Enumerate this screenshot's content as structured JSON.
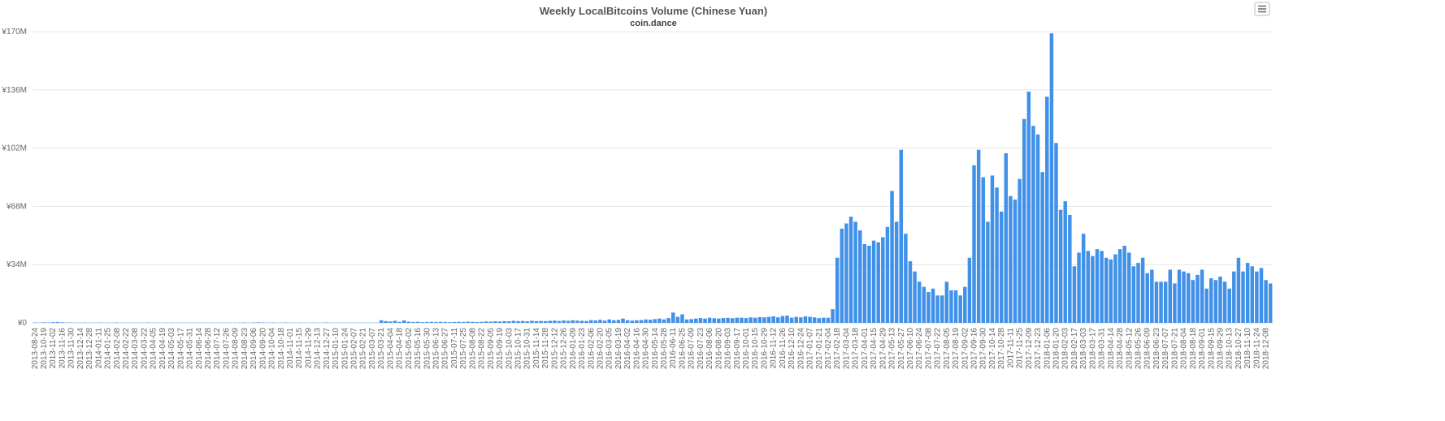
{
  "chart_data": {
    "type": "bar",
    "title": "Weekly LocalBitcoins Volume (Chinese Yuan)",
    "subtitle": "coin.dance",
    "color": "#4191e8",
    "grid": true,
    "ylim": [
      0,
      170000000
    ],
    "yticks": [
      {
        "value": 0,
        "label": "¥0"
      },
      {
        "value": 34000000,
        "label": "¥34M"
      },
      {
        "value": 68000000,
        "label": "¥68M"
      },
      {
        "value": 102000000,
        "label": "¥102M"
      },
      {
        "value": 136000000,
        "label": "¥136M"
      },
      {
        "value": 170000000,
        "label": "¥170M"
      }
    ],
    "categories": [
      "2013-08-24",
      null,
      "2013-10-19",
      null,
      "2013-11-02",
      null,
      "2013-11-16",
      null,
      "2013-11-30",
      null,
      "2013-12-14",
      null,
      "2013-12-28",
      null,
      "2014-01-11",
      null,
      "2014-01-25",
      null,
      "2014-02-08",
      null,
      "2014-02-22",
      null,
      "2014-03-08",
      null,
      "2014-03-22",
      null,
      "2014-04-05",
      null,
      "2014-04-19",
      null,
      "2014-05-03",
      null,
      "2014-05-17",
      null,
      "2014-05-31",
      null,
      "2014-06-14",
      null,
      "2014-06-28",
      null,
      "2014-07-12",
      null,
      "2014-07-26",
      null,
      "2014-08-09",
      null,
      "2014-08-23",
      null,
      "2014-09-06",
      null,
      "2014-09-20",
      null,
      "2014-10-04",
      null,
      "2014-10-18",
      null,
      "2014-11-01",
      null,
      "2014-11-15",
      null,
      "2014-11-29",
      null,
      "2014-12-13",
      null,
      "2014-12-27",
      null,
      "2015-01-10",
      null,
      "2015-01-24",
      null,
      "2015-02-07",
      null,
      "2015-02-21",
      null,
      "2015-03-07",
      null,
      "2015-03-21",
      null,
      "2015-04-04",
      null,
      "2015-04-18",
      null,
      "2015-05-02",
      null,
      "2015-05-16",
      null,
      "2015-05-30",
      null,
      "2015-06-13",
      null,
      "2015-06-27",
      null,
      "2015-07-11",
      null,
      "2015-07-25",
      null,
      "2015-08-08",
      null,
      "2015-08-22",
      null,
      "2015-09-05",
      null,
      "2015-09-19",
      null,
      "2015-10-03",
      null,
      "2015-10-17",
      null,
      "2015-10-31",
      null,
      "2015-11-14",
      null,
      "2015-11-28",
      null,
      "2015-12-12",
      null,
      "2015-12-26",
      null,
      "2016-01-09",
      null,
      "2016-01-23",
      null,
      "2016-02-06",
      null,
      "2016-02-20",
      null,
      "2016-03-05",
      null,
      "2016-03-19",
      null,
      "2016-04-02",
      null,
      "2016-04-16",
      null,
      "2016-04-30",
      null,
      "2016-05-14",
      null,
      "2016-05-28",
      null,
      "2016-06-11",
      null,
      "2016-06-25",
      null,
      "2016-07-09",
      null,
      "2016-07-23",
      null,
      "2016-08-06",
      null,
      "2016-08-20",
      null,
      "2016-09-03",
      null,
      "2016-09-17",
      null,
      "2016-10-01",
      null,
      "2016-10-15",
      null,
      "2016-10-29",
      null,
      "2016-11-12",
      null,
      "2016-11-26",
      null,
      "2016-12-10",
      null,
      "2016-12-24",
      null,
      "2017-01-07",
      null,
      "2017-01-21",
      null,
      "2017-02-04",
      null,
      "2017-02-18",
      null,
      "2017-03-04",
      null,
      "2017-03-18",
      null,
      "2017-04-01",
      null,
      "2017-04-15",
      null,
      "2017-04-29",
      null,
      "2017-05-13",
      null,
      "2017-05-27",
      null,
      "2017-06-10",
      null,
      "2017-06-24",
      null,
      "2017-07-08",
      null,
      "2017-07-22",
      null,
      "2017-08-05",
      null,
      "2017-08-19",
      null,
      "2017-09-02",
      null,
      "2017-09-16",
      null,
      "2017-09-30",
      null,
      "2017-10-14",
      null,
      "2017-10-28",
      null,
      "2017-11-11",
      null,
      "2017-11-25",
      null,
      "2017-12-09",
      null,
      "2017-12-23",
      null,
      "2018-01-06",
      null,
      "2018-01-20",
      null,
      "2018-02-03",
      null,
      "2018-02-17",
      null,
      "2018-03-03",
      null,
      "2018-03-17",
      null,
      "2018-03-31",
      null,
      "2018-04-14",
      null,
      "2018-04-28",
      null,
      "2018-05-12",
      null,
      "2018-05-26",
      null,
      "2018-06-09",
      null,
      "2018-06-23",
      null,
      "2018-07-07",
      null,
      "2018-07-21",
      null,
      "2018-08-04",
      null,
      "2018-08-18",
      null,
      "2018-09-01",
      null,
      "2018-09-15",
      null,
      "2018-09-29",
      null,
      "2018-10-13",
      null,
      "2018-10-27",
      null,
      "2018-11-10",
      null,
      "2018-11-24",
      null,
      "2018-12-08",
      null
    ],
    "values": [
      200000,
      100000,
      300000,
      200000,
      400000,
      500000,
      300000,
      200000,
      200000,
      100000,
      100000,
      200000,
      100000,
      100000,
      200000,
      100000,
      100000,
      100000,
      200000,
      100000,
      100000,
      100000,
      100000,
      100000,
      100000,
      200000,
      100000,
      100000,
      100000,
      100000,
      100000,
      100000,
      100000,
      100000,
      100000,
      100000,
      100000,
      100000,
      100000,
      100000,
      100000,
      100000,
      100000,
      100000,
      100000,
      100000,
      200000,
      100000,
      200000,
      300000,
      200000,
      100000,
      200000,
      100000,
      100000,
      200000,
      100000,
      100000,
      100000,
      100000,
      100000,
      100000,
      100000,
      100000,
      200000,
      100000,
      100000,
      100000,
      100000,
      100000,
      100000,
      100000,
      100000,
      100000,
      100000,
      100000,
      1500000,
      1000000,
      800000,
      1200000,
      600000,
      1400000,
      700000,
      500000,
      600000,
      400000,
      500000,
      600000,
      500000,
      600000,
      500000,
      400000,
      500000,
      600000,
      500000,
      700000,
      600000,
      500000,
      600000,
      800000,
      700000,
      900000,
      800000,
      1000000,
      900000,
      1200000,
      1000000,
      1100000,
      900000,
      1200000,
      1000000,
      1100000,
      1000000,
      1200000,
      1300000,
      1100000,
      1400000,
      1200000,
      1500000,
      1300000,
      1200000,
      1100000,
      1600000,
      1400000,
      1800000,
      1300000,
      2000000,
      1500000,
      1700000,
      2500000,
      1500000,
      1300000,
      1500000,
      1600000,
      2000000,
      1800000,
      2200000,
      2500000,
      2000000,
      2800000,
      6000000,
      3500000,
      5000000,
      2000000,
      2200000,
      2500000,
      2800000,
      2500000,
      3000000,
      2700000,
      2500000,
      2800000,
      2900000,
      2700000,
      3000000,
      3000000,
      2800000,
      3200000,
      3000000,
      3300000,
      3200000,
      3500000,
      3800000,
      3200000,
      4000000,
      4200000,
      3000000,
      3500000,
      3200000,
      3800000,
      3500000,
      3200000,
      2800000,
      3000000,
      3000000,
      8000000,
      38000000,
      55000000,
      58000000,
      62000000,
      59000000,
      54000000,
      46000000,
      45000000,
      48000000,
      47000000,
      50000000,
      56000000,
      77000000,
      59000000,
      101000000,
      52000000,
      36000000,
      30000000,
      24000000,
      21000000,
      18000000,
      20000000,
      16000000,
      16000000,
      24000000,
      19000000,
      19000000,
      16000000,
      21000000,
      38000000,
      92000000,
      101000000,
      85000000,
      59000000,
      86000000,
      79000000,
      65000000,
      99000000,
      74000000,
      72000000,
      84000000,
      119000000,
      135000000,
      115000000,
      110000000,
      88000000,
      132000000,
      169000000,
      105000000,
      66000000,
      71000000,
      63000000,
      33000000,
      41000000,
      52000000,
      42000000,
      39000000,
      43000000,
      42000000,
      38000000,
      37000000,
      40000000,
      43000000,
      45000000,
      41000000,
      33000000,
      35000000,
      38000000,
      29000000,
      31000000,
      24000000,
      24000000,
      24000000,
      31000000,
      23000000,
      31000000,
      30000000,
      29000000,
      25000000,
      28000000,
      31000000,
      20000000,
      26000000,
      25000000,
      27000000,
      24000000,
      20000000,
      30000000,
      38000000,
      30000000,
      35000000,
      33000000,
      30000000,
      32000000,
      25000000,
      23000000
    ]
  }
}
